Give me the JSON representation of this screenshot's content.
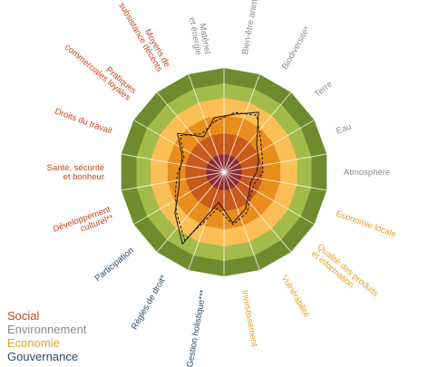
{
  "chart_data": {
    "type": "radar",
    "title": "",
    "levels": [
      {
        "color": "#8b2b33"
      },
      {
        "color": "#c85b1b"
      },
      {
        "color": "#e98e1d"
      },
      {
        "color": "#fbbf55"
      },
      {
        "color": "#a3bb49"
      },
      {
        "color": "#6e8c2e"
      }
    ],
    "axes": [
      {
        "label": "Matériel et énergie",
        "lines": [
          "Matériel",
          "et énergie"
        ],
        "group": "Environnement"
      },
      {
        "label": "Bien-être animal",
        "lines": [
          "Bien-être animal"
        ],
        "group": "Environnement"
      },
      {
        "label": "Biodiversité*",
        "lines": [
          "Biodiversité*"
        ],
        "group": "Environnement"
      },
      {
        "label": "Terre",
        "lines": [
          "Terre"
        ],
        "group": "Environnement"
      },
      {
        "label": "Eau",
        "lines": [
          "Eau"
        ],
        "group": "Environnement"
      },
      {
        "label": "Atmosphère",
        "lines": [
          "Atmosphère"
        ],
        "group": "Environnement"
      },
      {
        "label": "Economie locale",
        "lines": [
          "Economie locale"
        ],
        "group": "Economie"
      },
      {
        "label": "Qualité des produits et information",
        "lines": [
          "Qualité des produits",
          "et information"
        ],
        "group": "Economie"
      },
      {
        "label": "Vulnérabilité",
        "lines": [
          "Vulnérabilité"
        ],
        "group": "Economie"
      },
      {
        "label": "Investissement",
        "lines": [
          "Investissement"
        ],
        "group": "Economie"
      },
      {
        "label": "Gestion holistique***",
        "lines": [
          "Gestion holistique***"
        ],
        "group": "Gouvernance"
      },
      {
        "label": "Règles de droit*",
        "lines": [
          "Règles de droit*"
        ],
        "group": "Gouvernance"
      },
      {
        "label": "Participation",
        "lines": [
          "Participation"
        ],
        "group": "Gouvernance"
      },
      {
        "label": "Développement culturel**",
        "lines": [
          "Développement",
          "culturel**"
        ],
        "group": "Social"
      },
      {
        "label": "Santé, sécurité et bonheur",
        "lines": [
          "Santé, sécurité",
          "et bonheur"
        ],
        "group": "Social"
      },
      {
        "label": "Droits du travail",
        "lines": [
          "Droits du travail"
        ],
        "group": "Social"
      },
      {
        "label": "Pratiques commerciales loyales",
        "lines": [
          "Pratiques",
          "commerciales loyales"
        ],
        "group": "Social"
      },
      {
        "label": "Moyens de subsistance décents",
        "lines": [
          "Moyens de",
          "subsistance décents"
        ],
        "group": "Social"
      }
    ],
    "series": [
      {
        "style": "solid",
        "values": [
          2.9,
          3.1,
          3.7,
          2.2,
          1.9,
          1.7,
          1.5,
          1.7,
          2.2,
          2.7,
          1.6,
          4.6,
          3.4,
          2.5,
          2.3,
          2.3,
          3.2,
          2.1
        ]
      },
      {
        "style": "dashed",
        "values": [
          2.7,
          3.2,
          3.5,
          2.5,
          2.1,
          2.0,
          1.7,
          1.8,
          2.4,
          2.8,
          1.9,
          4.3,
          3.3,
          2.7,
          2.4,
          2.2,
          3.0,
          2.3
        ]
      }
    ],
    "r_max": 6,
    "legend": {
      "position": "bottom-left",
      "items": [
        {
          "label": "Social",
          "color": "#c5441c"
        },
        {
          "label": "Environnement",
          "color": "#8a8a8a"
        },
        {
          "label": "Economie",
          "color": "#e3a02a"
        },
        {
          "label": "Gouvernance",
          "color": "#2c4966"
        }
      ]
    }
  }
}
